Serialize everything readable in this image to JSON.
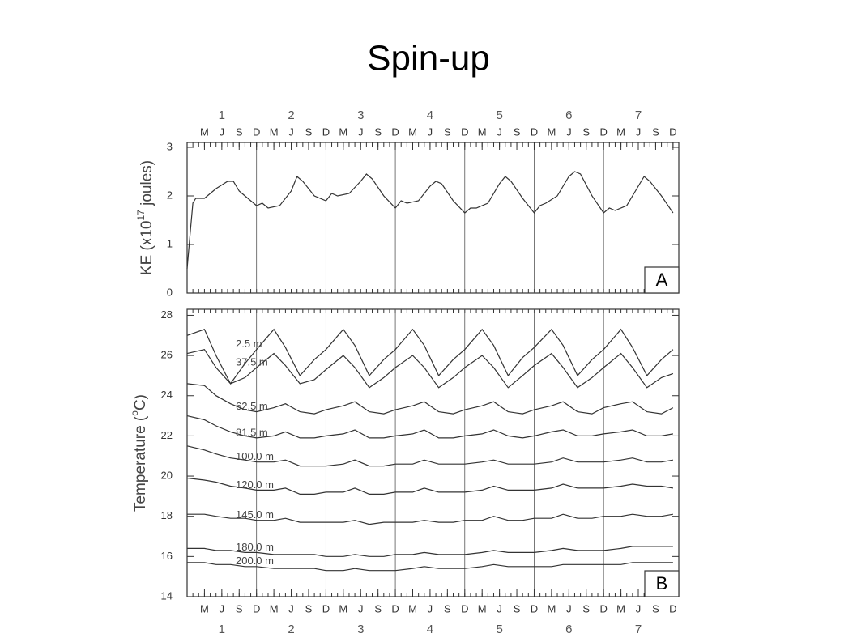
{
  "title": "Spin-up",
  "chart_data": [
    {
      "type": "line",
      "ylabel": {
        "text": "KE (x10",
        "superscript": "17",
        "suffix": " joules)"
      },
      "panel_label": "A",
      "x": [
        0,
        0.5,
        1,
        1.5,
        3,
        5,
        7,
        8,
        9,
        10,
        12,
        13,
        14,
        16,
        18,
        19,
        20,
        22,
        24,
        25,
        26,
        28,
        30,
        31,
        32,
        34,
        36,
        37,
        38,
        40,
        42,
        43,
        44,
        46,
        48,
        49,
        50,
        52,
        54,
        55,
        56,
        58,
        60,
        61,
        62,
        64,
        66,
        67,
        68,
        70,
        72,
        73,
        74,
        76,
        78,
        79,
        80,
        82,
        84
      ],
      "values": [
        0.5,
        1.2,
        1.85,
        1.95,
        1.95,
        2.15,
        2.3,
        2.3,
        2.1,
        2.0,
        1.8,
        1.85,
        1.75,
        1.8,
        2.1,
        2.4,
        2.3,
        2.0,
        1.9,
        2.05,
        2.0,
        2.05,
        2.3,
        2.45,
        2.35,
        2.0,
        1.75,
        1.9,
        1.85,
        1.9,
        2.2,
        2.3,
        2.25,
        1.9,
        1.65,
        1.75,
        1.75,
        1.85,
        2.25,
        2.4,
        2.3,
        1.95,
        1.65,
        1.8,
        1.85,
        2.0,
        2.4,
        2.5,
        2.45,
        2.0,
        1.65,
        1.75,
        1.7,
        1.8,
        2.2,
        2.4,
        2.3,
        2.0,
        1.65
      ],
      "color": "#333333",
      "xlim": [
        0,
        85
      ],
      "ylim": [
        0,
        3.1
      ],
      "yticks": [
        0,
        1,
        2,
        3
      ],
      "xticks": [
        {
          "value": 3,
          "label": "M"
        },
        {
          "value": 6,
          "label": "J"
        },
        {
          "value": 9,
          "label": "S"
        },
        {
          "value": 12,
          "label": "D"
        },
        {
          "value": 15,
          "label": "M"
        },
        {
          "value": 18,
          "label": "J"
        },
        {
          "value": 21,
          "label": "S"
        },
        {
          "value": 24,
          "label": "D"
        },
        {
          "value": 27,
          "label": "M"
        },
        {
          "value": 30,
          "label": "J"
        },
        {
          "value": 33,
          "label": "S"
        },
        {
          "value": 36,
          "label": "D"
        },
        {
          "value": 39,
          "label": "M"
        },
        {
          "value": 42,
          "label": "J"
        },
        {
          "value": 45,
          "label": "S"
        },
        {
          "value": 48,
          "label": "D"
        },
        {
          "value": 51,
          "label": "M"
        },
        {
          "value": 54,
          "label": "J"
        },
        {
          "value": 57,
          "label": "S"
        },
        {
          "value": 60,
          "label": "D"
        },
        {
          "value": 63,
          "label": "M"
        },
        {
          "value": 66,
          "label": "J"
        },
        {
          "value": 69,
          "label": "S"
        },
        {
          "value": 72,
          "label": "D"
        },
        {
          "value": 75,
          "label": "M"
        },
        {
          "value": 78,
          "label": "J"
        },
        {
          "value": 81,
          "label": "S"
        },
        {
          "value": 84,
          "label": "D"
        }
      ],
      "year_labels": [
        {
          "value": 6,
          "label": "1"
        },
        {
          "value": 18,
          "label": "2"
        },
        {
          "value": 30,
          "label": "3"
        },
        {
          "value": 42,
          "label": "4"
        },
        {
          "value": 54,
          "label": "5"
        },
        {
          "value": 66,
          "label": "6"
        },
        {
          "value": 78,
          "label": "7"
        }
      ],
      "year_boundaries": [
        12,
        24,
        36,
        48,
        60,
        72
      ]
    },
    {
      "type": "multiline",
      "ylabel": {
        "text": "Temperature (",
        "superscript": "o",
        "suffix": "C)"
      },
      "panel_label": "B",
      "x": [
        0,
        3,
        5,
        7.5,
        10,
        12,
        15,
        17,
        19.5,
        22,
        24,
        27,
        29,
        31.5,
        34,
        36,
        39,
        41,
        43.5,
        46,
        48,
        51,
        53,
        55.5,
        58,
        60,
        63,
        65,
        67.5,
        70,
        72,
        75,
        77,
        79.5,
        82,
        84
      ],
      "series": [
        {
          "name": "2.5 m",
          "color": "#333333",
          "values": [
            27.0,
            27.3,
            26.0,
            24.6,
            25.6,
            26.3,
            27.3,
            26.4,
            25.0,
            25.8,
            26.3,
            27.3,
            26.5,
            25.0,
            25.8,
            26.3,
            27.3,
            26.5,
            25.0,
            25.8,
            26.3,
            27.3,
            26.5,
            25.0,
            25.9,
            26.4,
            27.3,
            26.5,
            25.0,
            25.8,
            26.3,
            27.3,
            26.4,
            25.0,
            25.8,
            26.3
          ]
        },
        {
          "name": "37.5 m",
          "color": "#333333",
          "values": [
            26.1,
            26.3,
            25.4,
            24.6,
            24.9,
            25.4,
            26.1,
            25.5,
            24.6,
            24.8,
            25.3,
            26.0,
            25.4,
            24.4,
            24.9,
            25.4,
            26.0,
            25.4,
            24.4,
            24.9,
            25.4,
            26.0,
            25.4,
            24.4,
            25.0,
            25.5,
            26.1,
            25.4,
            24.4,
            24.9,
            25.4,
            26.1,
            25.4,
            24.4,
            24.9,
            25.1
          ]
        },
        {
          "name": "62.5 m",
          "color": "#333333",
          "values": [
            24.6,
            24.5,
            24.0,
            23.6,
            23.3,
            23.2,
            23.4,
            23.6,
            23.2,
            23.1,
            23.3,
            23.5,
            23.7,
            23.2,
            23.1,
            23.3,
            23.5,
            23.7,
            23.2,
            23.1,
            23.3,
            23.5,
            23.7,
            23.2,
            23.1,
            23.3,
            23.5,
            23.7,
            23.2,
            23.1,
            23.4,
            23.6,
            23.7,
            23.2,
            23.1,
            23.4
          ]
        },
        {
          "name": "81.5 m",
          "color": "#333333",
          "values": [
            23.0,
            22.8,
            22.5,
            22.2,
            22.0,
            21.9,
            22.0,
            22.2,
            21.9,
            21.9,
            22.0,
            22.1,
            22.3,
            21.9,
            21.9,
            22.0,
            22.1,
            22.3,
            21.9,
            21.9,
            22.0,
            22.1,
            22.3,
            22.0,
            21.9,
            22.0,
            22.2,
            22.3,
            22.0,
            22.0,
            22.1,
            22.2,
            22.3,
            22.0,
            22.0,
            22.1
          ]
        },
        {
          "name": "100.0 m",
          "color": "#333333",
          "values": [
            21.5,
            21.3,
            21.1,
            20.9,
            20.8,
            20.7,
            20.7,
            20.8,
            20.5,
            20.5,
            20.5,
            20.6,
            20.8,
            20.5,
            20.5,
            20.6,
            20.6,
            20.8,
            20.6,
            20.6,
            20.6,
            20.7,
            20.8,
            20.6,
            20.6,
            20.6,
            20.7,
            20.9,
            20.7,
            20.7,
            20.7,
            20.8,
            20.9,
            20.7,
            20.7,
            20.8
          ]
        },
        {
          "name": "120.0 m",
          "color": "#333333",
          "values": [
            19.9,
            19.8,
            19.7,
            19.5,
            19.4,
            19.3,
            19.3,
            19.4,
            19.1,
            19.1,
            19.2,
            19.2,
            19.4,
            19.1,
            19.1,
            19.2,
            19.2,
            19.4,
            19.2,
            19.2,
            19.2,
            19.3,
            19.5,
            19.3,
            19.3,
            19.3,
            19.4,
            19.6,
            19.4,
            19.4,
            19.4,
            19.5,
            19.6,
            19.5,
            19.5,
            19.4
          ]
        },
        {
          "name": "145.0 m",
          "color": "#333333",
          "values": [
            18.1,
            18.1,
            18.0,
            17.9,
            17.9,
            17.8,
            17.8,
            17.9,
            17.7,
            17.7,
            17.7,
            17.7,
            17.8,
            17.6,
            17.7,
            17.7,
            17.7,
            17.8,
            17.7,
            17.7,
            17.8,
            17.8,
            18.0,
            17.8,
            17.8,
            17.9,
            17.9,
            18.1,
            17.9,
            17.9,
            18.0,
            18.0,
            18.1,
            18.0,
            18.0,
            18.1
          ]
        },
        {
          "name": "180.0 m",
          "color": "#333333",
          "values": [
            16.4,
            16.4,
            16.3,
            16.3,
            16.2,
            16.2,
            16.1,
            16.1,
            16.1,
            16.1,
            16.0,
            16.0,
            16.1,
            16.0,
            16.0,
            16.1,
            16.1,
            16.2,
            16.1,
            16.1,
            16.1,
            16.2,
            16.3,
            16.2,
            16.2,
            16.2,
            16.3,
            16.4,
            16.3,
            16.3,
            16.3,
            16.4,
            16.5,
            16.5,
            16.5,
            16.5
          ]
        },
        {
          "name": "200.0 m",
          "color": "#333333",
          "values": [
            15.7,
            15.7,
            15.6,
            15.6,
            15.5,
            15.5,
            15.4,
            15.4,
            15.4,
            15.4,
            15.3,
            15.3,
            15.4,
            15.3,
            15.3,
            15.3,
            15.4,
            15.5,
            15.4,
            15.4,
            15.4,
            15.5,
            15.6,
            15.5,
            15.5,
            15.5,
            15.5,
            15.6,
            15.6,
            15.6,
            15.6,
            15.6,
            15.7,
            15.7,
            15.7,
            15.7
          ]
        }
      ],
      "xlim": [
        0,
        85
      ],
      "ylim": [
        14,
        28.3
      ],
      "yticks": [
        14,
        16,
        18,
        20,
        22,
        24,
        26,
        28
      ],
      "xticks": [
        {
          "value": 3,
          "label": "M"
        },
        {
          "value": 6,
          "label": "J"
        },
        {
          "value": 9,
          "label": "S"
        },
        {
          "value": 12,
          "label": "D"
        },
        {
          "value": 15,
          "label": "M"
        },
        {
          "value": 18,
          "label": "J"
        },
        {
          "value": 21,
          "label": "S"
        },
        {
          "value": 24,
          "label": "D"
        },
        {
          "value": 27,
          "label": "M"
        },
        {
          "value": 30,
          "label": "J"
        },
        {
          "value": 33,
          "label": "S"
        },
        {
          "value": 36,
          "label": "D"
        },
        {
          "value": 39,
          "label": "M"
        },
        {
          "value": 42,
          "label": "J"
        },
        {
          "value": 45,
          "label": "S"
        },
        {
          "value": 48,
          "label": "D"
        },
        {
          "value": 51,
          "label": "M"
        },
        {
          "value": 54,
          "label": "J"
        },
        {
          "value": 57,
          "label": "S"
        },
        {
          "value": 60,
          "label": "D"
        },
        {
          "value": 63,
          "label": "M"
        },
        {
          "value": 66,
          "label": "J"
        },
        {
          "value": 69,
          "label": "S"
        },
        {
          "value": 72,
          "label": "D"
        },
        {
          "value": 75,
          "label": "M"
        },
        {
          "value": 78,
          "label": "J"
        },
        {
          "value": 81,
          "label": "S"
        },
        {
          "value": 84,
          "label": "D"
        }
      ],
      "year_labels": [
        {
          "value": 6,
          "label": "1"
        },
        {
          "value": 18,
          "label": "2"
        },
        {
          "value": 30,
          "label": "3"
        },
        {
          "value": 42,
          "label": "4"
        },
        {
          "value": 54,
          "label": "5"
        },
        {
          "value": 66,
          "label": "6"
        },
        {
          "value": 78,
          "label": "7"
        }
      ],
      "year_boundaries": [
        12,
        24,
        36,
        48,
        60,
        72
      ]
    }
  ]
}
